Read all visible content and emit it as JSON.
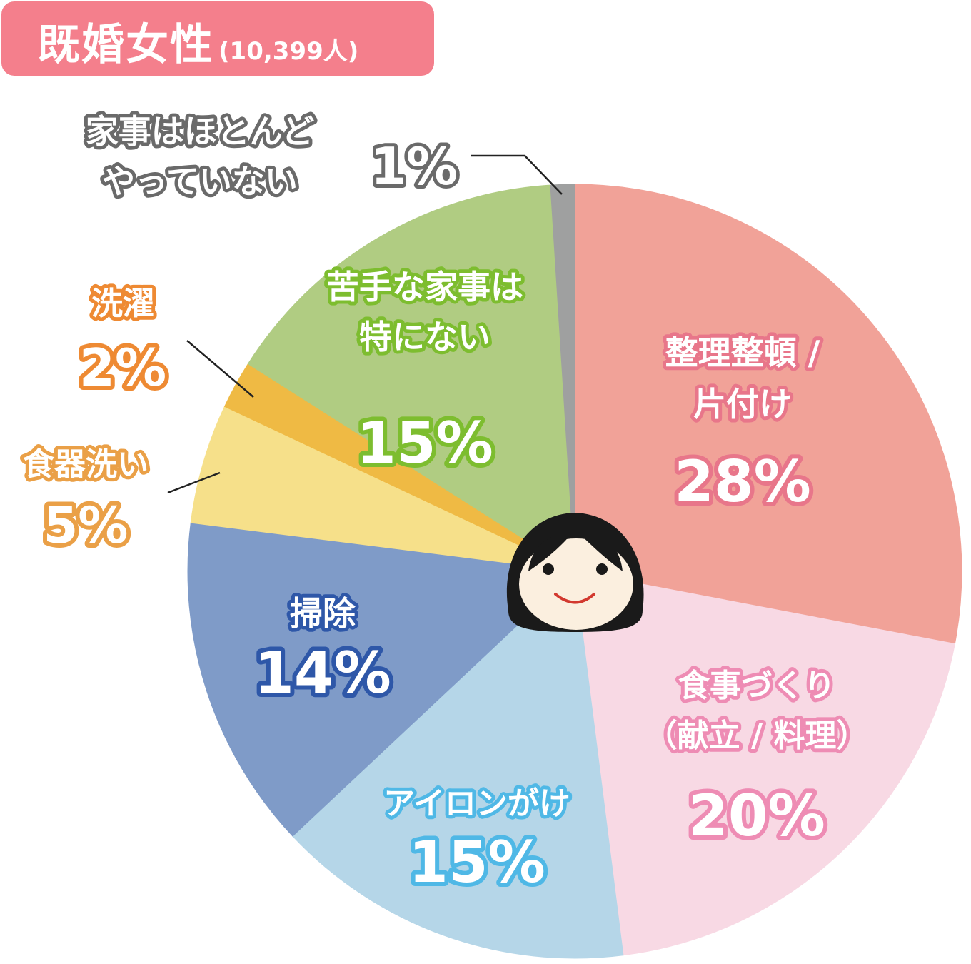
{
  "header": {
    "title": "既婚女性",
    "count": "(10,399人)"
  },
  "chart_data": {
    "type": "pie",
    "title": "既婚女性",
    "subtitle": "(10,399人)",
    "slices": [
      {
        "label": [
          "整理整頓 /",
          "片付け"
        ],
        "value": 28,
        "pct": "28%",
        "color": "#f1a298",
        "text_color": "#ffffff",
        "outline": "#e8768a",
        "label_pos": "inside"
      },
      {
        "label": [
          "食事づくり",
          "（献立 / 料理）"
        ],
        "value": 20,
        "pct": "20%",
        "color": "#f8d9e4",
        "text_color": "#ffffff",
        "outline": "#ee8cb4",
        "label_pos": "inside"
      },
      {
        "label": [
          "アイロンがけ"
        ],
        "value": 15,
        "pct": "15%",
        "color": "#b5d6e8",
        "text_color": "#ffffff",
        "outline": "#4fb8e6",
        "label_pos": "inside"
      },
      {
        "label": [
          "掃除"
        ],
        "value": 14,
        "pct": "14%",
        "color": "#7f9bc8",
        "text_color": "#ffffff",
        "outline": "#2e57a8",
        "label_pos": "inside"
      },
      {
        "label": [
          "食器洗い"
        ],
        "value": 5,
        "pct": "5%",
        "color": "#f6e08a",
        "text_color": "#ffffff",
        "outline": "#eaa047",
        "label_pos": "outside"
      },
      {
        "label": [
          "洗濯"
        ],
        "value": 2,
        "pct": "2%",
        "color": "#efba44",
        "text_color": "#ffffff",
        "outline": "#ee8a33",
        "label_pos": "outside"
      },
      {
        "label": [
          "苦手な家事は",
          "特にない"
        ],
        "value": 15,
        "pct": "15%",
        "color": "#b0cc82",
        "text_color": "#ffffff",
        "outline": "#7dbd2f",
        "label_pos": "inside"
      },
      {
        "label": [
          "家事はほとんど",
          "やっていない"
        ],
        "value": 1,
        "pct": "1%",
        "color": "#9fa0a0",
        "text_color": "#ffffff",
        "outline": "#6a6a6a",
        "label_pos": "outside"
      }
    ],
    "legend": "none"
  },
  "center_icon": "woman-face-icon",
  "colors": {
    "badge": "#f47f8c",
    "face_skin": "#fbefdf",
    "hair": "#1a1a1a",
    "mouth": "#d2392f",
    "leader_line": "#222222"
  }
}
